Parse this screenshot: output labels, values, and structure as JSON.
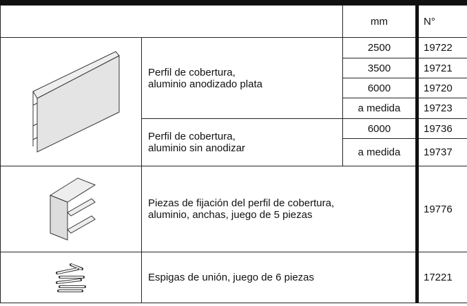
{
  "table": {
    "header": {
      "mm": "mm",
      "number": "N°"
    },
    "groups": [
      {
        "items": [
          {
            "lines": [
              "Perfil de cobertura,",
              "aluminio anodizado plata"
            ],
            "sizes": [
              {
                "mm": 2500,
                "number": 19722
              },
              {
                "mm": 3500,
                "number": 19721
              },
              {
                "mm": 6000,
                "number": 19720
              },
              {
                "mm": "a medida",
                "number": 19723
              }
            ]
          },
          {
            "lines": [
              "Perfil de cobertura,",
              "aluminio sin anodizar"
            ],
            "sizes": [
              {
                "mm": 6000,
                "number": 19736
              },
              {
                "mm": "a medida",
                "number": 19737
              }
            ]
          }
        ]
      },
      {
        "lines": [
          "Piezas de fijación del perfil de cobertura,",
          "aluminio, anchas, juego de 5 piezas"
        ],
        "number": 19776
      },
      {
        "lines": [
          "Espigas de unión, juego de 6 piezas"
        ],
        "number": 17221
      }
    ]
  }
}
